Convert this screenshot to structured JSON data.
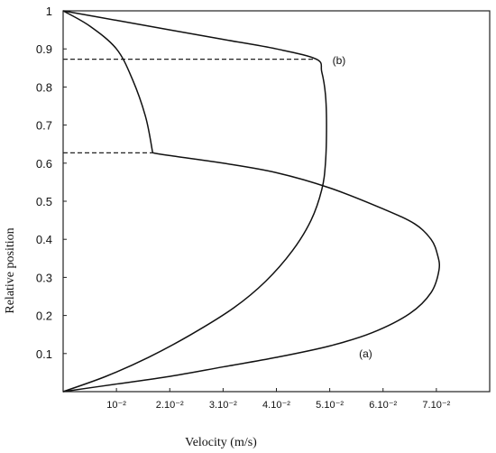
{
  "chart_data": {
    "type": "line",
    "title": "",
    "xlabel": "Velocity (m/s)",
    "ylabel": "Relative position",
    "xlim": [
      0,
      0.08
    ],
    "ylim": [
      0,
      1
    ],
    "grid": false,
    "x_ticks": [
      {
        "value": 0.01,
        "label": "10⁻²"
      },
      {
        "value": 0.02,
        "label": "2.10⁻²"
      },
      {
        "value": 0.03,
        "label": "3.10⁻²"
      },
      {
        "value": 0.04,
        "label": "4.10⁻²"
      },
      {
        "value": 0.05,
        "label": "5.10⁻²"
      },
      {
        "value": 0.06,
        "label": "6.10⁻²"
      },
      {
        "value": 0.07,
        "label": "7.10⁻²"
      }
    ],
    "y_ticks": [
      {
        "value": 0.1,
        "label": "0.1"
      },
      {
        "value": 0.2,
        "label": "0.2"
      },
      {
        "value": 0.3,
        "label": "0.3"
      },
      {
        "value": 0.4,
        "label": "0.4"
      },
      {
        "value": 0.5,
        "label": "0.5"
      },
      {
        "value": 0.6,
        "label": "0.6"
      },
      {
        "value": 0.7,
        "label": "0.7"
      },
      {
        "value": 0.8,
        "label": "0.8"
      },
      {
        "value": 0.9,
        "label": "0.9"
      },
      {
        "value": 1,
        "label": "1"
      }
    ],
    "series": [
      {
        "label": "(a)",
        "points": [
          [
            0,
            0
          ],
          [
            0.01,
            0.02
          ],
          [
            0.02,
            0.04
          ],
          [
            0.03,
            0.065
          ],
          [
            0.04,
            0.09
          ],
          [
            0.05,
            0.12
          ],
          [
            0.058,
            0.155
          ],
          [
            0.065,
            0.205
          ],
          [
            0.069,
            0.26
          ],
          [
            0.0705,
            0.32
          ],
          [
            0.0702,
            0.36
          ],
          [
            0.069,
            0.4
          ],
          [
            0.066,
            0.44
          ],
          [
            0.06,
            0.48
          ],
          [
            0.05,
            0.535
          ],
          [
            0.04,
            0.575
          ],
          [
            0.03,
            0.6
          ],
          [
            0.02,
            0.62
          ],
          [
            0.0168,
            0.627
          ]
        ],
        "label_position": [
          0.0555,
          0.1
        ]
      },
      {
        "label": "(b)",
        "points": [
          [
            0,
            0
          ],
          [
            0.008,
            0.04
          ],
          [
            0.016,
            0.09
          ],
          [
            0.024,
            0.15
          ],
          [
            0.032,
            0.22
          ],
          [
            0.038,
            0.29
          ],
          [
            0.043,
            0.37
          ],
          [
            0.0465,
            0.45
          ],
          [
            0.0485,
            0.53
          ],
          [
            0.0492,
            0.6
          ],
          [
            0.0494,
            0.7
          ],
          [
            0.0492,
            0.78
          ],
          [
            0.0485,
            0.84
          ],
          [
            0.0475,
            0.873
          ],
          [
            0.04,
            0.9
          ],
          [
            0.03,
            0.925
          ],
          [
            0.02,
            0.95
          ],
          [
            0.01,
            0.975
          ],
          [
            0,
            1
          ]
        ],
        "label_position": [
          0.0505,
          0.87
        ]
      },
      {
        "label": "",
        "points": [
          [
            0,
            1
          ],
          [
            0.005,
            0.96
          ],
          [
            0.01,
            0.9
          ],
          [
            0.013,
            0.82
          ],
          [
            0.0155,
            0.72
          ],
          [
            0.0168,
            0.627
          ]
        ]
      }
    ],
    "dashed_lines": [
      {
        "y": 0.873,
        "x_from": 0,
        "x_to": 0.0475
      },
      {
        "y": 0.627,
        "x_from": 0,
        "x_to": 0.0168
      }
    ]
  }
}
